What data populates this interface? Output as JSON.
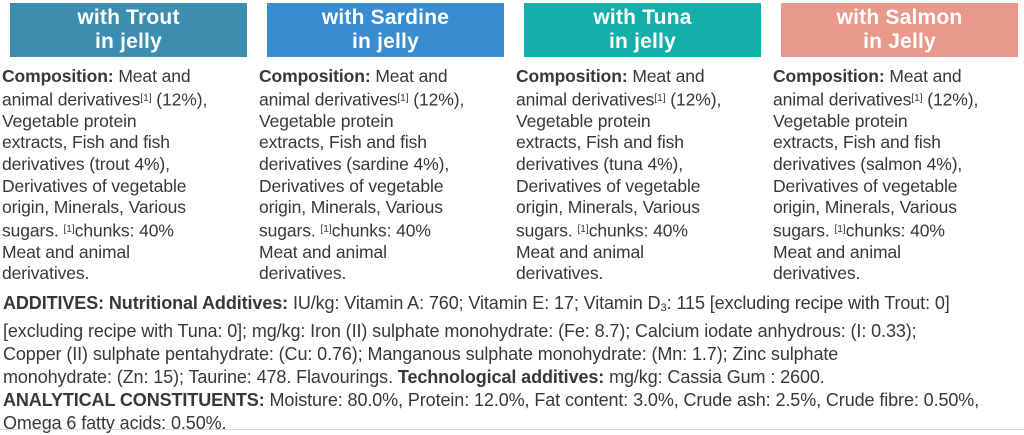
{
  "page": {
    "bottom_border_color": "#dadada",
    "text_color": "#383838"
  },
  "columns": [
    {
      "id": "trout",
      "header": {
        "line1": "with Trout",
        "line2": "in jelly",
        "bg_color": "#3d8db1",
        "text_color": "#ffffff"
      },
      "composition_segments": [
        {
          "t": "Composition:",
          "b": true
        },
        {
          "t": " Meat and"
        },
        {
          "br": true
        },
        {
          "t": "animal derivatives"
        },
        {
          "t": "[1]",
          "sup": true
        },
        {
          "t": " (12%),"
        },
        {
          "br": true
        },
        {
          "t": "Vegetable protein"
        },
        {
          "br": true
        },
        {
          "t": "extracts, Fish and fish"
        },
        {
          "br": true
        },
        {
          "t": "derivatives (trout 4%),"
        },
        {
          "br": true
        },
        {
          "t": "Derivatives of vegetable"
        },
        {
          "br": true
        },
        {
          "t": "origin, Minerals, Various"
        },
        {
          "br": true
        },
        {
          "t": "sugars. "
        },
        {
          "t": "[1]",
          "sup": true
        },
        {
          "t": "chunks: 40%"
        },
        {
          "br": true
        },
        {
          "t": "Meat and animal"
        },
        {
          "br": true
        },
        {
          "t": "derivatives."
        }
      ]
    },
    {
      "id": "sardine",
      "header": {
        "line1": "with Sardine",
        "line2": "in jelly",
        "bg_color": "#3a8cd0",
        "text_color": "#ffffff"
      },
      "composition_segments": [
        {
          "t": "Composition:",
          "b": true
        },
        {
          "t": " Meat and"
        },
        {
          "br": true
        },
        {
          "t": "animal derivatives"
        },
        {
          "t": "[1]",
          "sup": true
        },
        {
          "t": " (12%),"
        },
        {
          "br": true
        },
        {
          "t": "Vegetable protein"
        },
        {
          "br": true
        },
        {
          "t": "extracts, Fish and fish"
        },
        {
          "br": true
        },
        {
          "t": "derivatives (sardine 4%),"
        },
        {
          "br": true
        },
        {
          "t": "Derivatives of vegetable"
        },
        {
          "br": true
        },
        {
          "t": "origin, Minerals, Various"
        },
        {
          "br": true
        },
        {
          "t": "sugars. "
        },
        {
          "t": "[1]",
          "sup": true
        },
        {
          "t": "chunks: 40%"
        },
        {
          "br": true
        },
        {
          "t": "Meat and animal"
        },
        {
          "br": true
        },
        {
          "t": "derivatives."
        }
      ]
    },
    {
      "id": "tuna",
      "header": {
        "line1": "with Tuna",
        "line2": "in jelly",
        "bg_color": "#13b0aa",
        "text_color": "#ffffff"
      },
      "composition_segments": [
        {
          "t": "Composition:",
          "b": true
        },
        {
          "t": " Meat and"
        },
        {
          "br": true
        },
        {
          "t": "animal derivatives"
        },
        {
          "t": "[1]",
          "sup": true
        },
        {
          "t": " (12%),"
        },
        {
          "br": true
        },
        {
          "t": "Vegetable protein"
        },
        {
          "br": true
        },
        {
          "t": "extracts, Fish and fish"
        },
        {
          "br": true
        },
        {
          "t": "derivatives (tuna 4%),"
        },
        {
          "br": true
        },
        {
          "t": "Derivatives of vegetable"
        },
        {
          "br": true
        },
        {
          "t": "origin, Minerals, Various"
        },
        {
          "br": true
        },
        {
          "t": "sugars. "
        },
        {
          "t": "[1]",
          "sup": true
        },
        {
          "t": "chunks: 40%"
        },
        {
          "br": true
        },
        {
          "t": "Meat and animal"
        },
        {
          "br": true
        },
        {
          "t": "derivatives."
        }
      ]
    },
    {
      "id": "salmon",
      "header": {
        "line1": "with Salmon",
        "line2": "in Jelly",
        "bg_color": "#e9998c",
        "text_color": "#ffffff"
      },
      "composition_segments": [
        {
          "t": "Composition:",
          "b": true
        },
        {
          "t": " Meat and"
        },
        {
          "br": true
        },
        {
          "t": "animal derivatives"
        },
        {
          "t": "[1]",
          "sup": true
        },
        {
          "t": " (12%),"
        },
        {
          "br": true
        },
        {
          "t": "Vegetable protein"
        },
        {
          "br": true
        },
        {
          "t": "extracts, Fish and fish"
        },
        {
          "br": true
        },
        {
          "t": "derivatives (salmon 4%),"
        },
        {
          "br": true
        },
        {
          "t": "Derivatives of vegetable"
        },
        {
          "br": true
        },
        {
          "t": "origin, Minerals, Various"
        },
        {
          "br": true
        },
        {
          "t": "sugars. "
        },
        {
          "t": "[1]",
          "sup": true
        },
        {
          "t": "chunks: 40%"
        },
        {
          "br": true
        },
        {
          "t": "Meat and animal"
        },
        {
          "br": true
        },
        {
          "t": "derivatives."
        }
      ]
    }
  ],
  "footer": {
    "additives_segments": [
      {
        "t": "ADDITIVES: Nutritional Additives:",
        "b": true
      },
      {
        "t": " IU/kg: Vitamin A: 760; Vitamin E: 17; Vitamin D"
      },
      {
        "t": "3",
        "sub": true
      },
      {
        "t": ": 115 [excluding recipe with Trout: 0]"
      },
      {
        "br": true
      },
      {
        "t": "[excluding recipe with Tuna: 0]; mg/kg: Iron (II) sulphate monohydrate: (Fe: 8.7); Calcium iodate anhydrous: (I: 0.33);"
      },
      {
        "br": true
      },
      {
        "t": "Copper (II) sulphate pentahydrate: (Cu: 0.76); Manganous sulphate monohydrate: (Mn: 1.7); Zinc sulphate"
      },
      {
        "br": true
      },
      {
        "t": "monohydrate: (Zn: 15); Taurine: 478. Flavourings. "
      },
      {
        "t": "Technological additives:",
        "b": true
      },
      {
        "t": " mg/kg: Cassia Gum : 2600."
      }
    ],
    "analytical_segments": [
      {
        "t": "ANALYTICAL CONSTITUENTS:",
        "b": true
      },
      {
        "t": " Moisture: 80.0%, Protein: 12.0%, Fat content: 3.0%, Crude ash: 2.5%, Crude fibre: 0.50%,"
      },
      {
        "br": true
      },
      {
        "t": "Omega 6 fatty acids: 0.50%."
      }
    ]
  }
}
